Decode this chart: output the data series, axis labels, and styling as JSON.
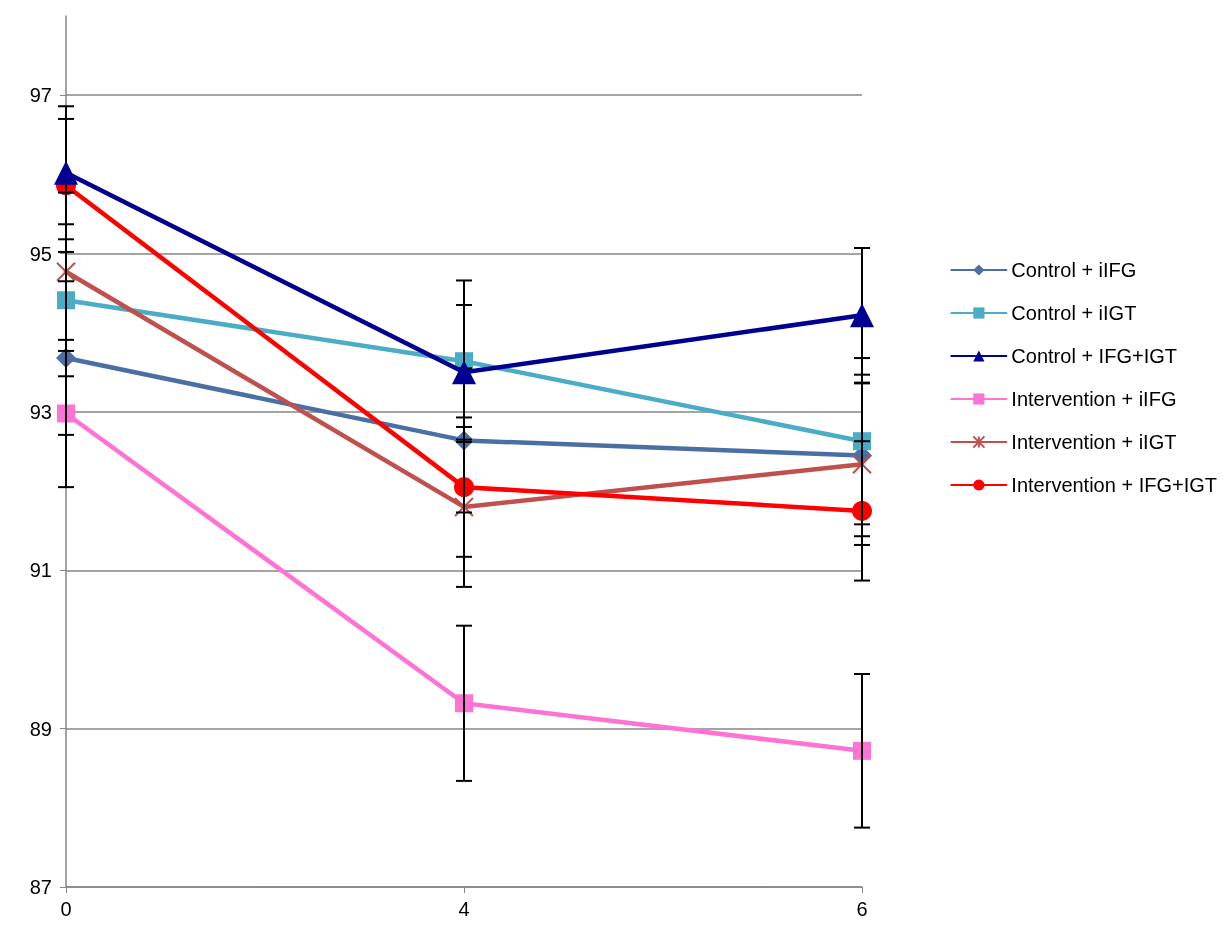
{
  "chart_data": {
    "type": "line",
    "categories": [
      "0",
      "4",
      "6"
    ],
    "ylim": [
      87,
      98
    ],
    "yticks": [
      87,
      89,
      91,
      93,
      95,
      97
    ],
    "grid": "y",
    "legend": "right",
    "line_style": "solid",
    "series": [
      {
        "name": "Control + iIFG",
        "color": "#4a6fa5",
        "marker": "diamond",
        "values": [
          93.68,
          92.64,
          92.45
        ],
        "errors": [
          0.97,
          0.91,
          1.02
        ]
      },
      {
        "name": "Control + iIGT",
        "color": "#4bacc6",
        "marker": "square",
        "values": [
          94.41,
          93.64,
          92.63
        ],
        "errors": [
          0.96,
          1.02,
          1.05
        ]
      },
      {
        "name": "Control + IFG+IGT",
        "color": "#000090",
        "marker": "triangle",
        "values": [
          96.02,
          93.5,
          94.22
        ],
        "errors": [
          0.84,
          0.85,
          0.85
        ]
      },
      {
        "name": "Intervention + iIFG",
        "color": "#ff73d4",
        "marker": "square",
        "values": [
          92.98,
          89.32,
          88.72
        ],
        "errors": [
          0.93,
          0.98,
          0.97
        ]
      },
      {
        "name": "Intervention + iIGT",
        "color": "#c0504d",
        "marker": "cross",
        "values": [
          94.77,
          91.8,
          92.34
        ],
        "errors": [
          1.0,
          1.01,
          1.02
        ]
      },
      {
        "name": "Intervention + IFG+IGT",
        "color": "#ff0000",
        "marker": "circle",
        "values": [
          95.86,
          92.05,
          91.75
        ],
        "errors": [
          0.84,
          0.88,
          0.88
        ]
      }
    ]
  }
}
